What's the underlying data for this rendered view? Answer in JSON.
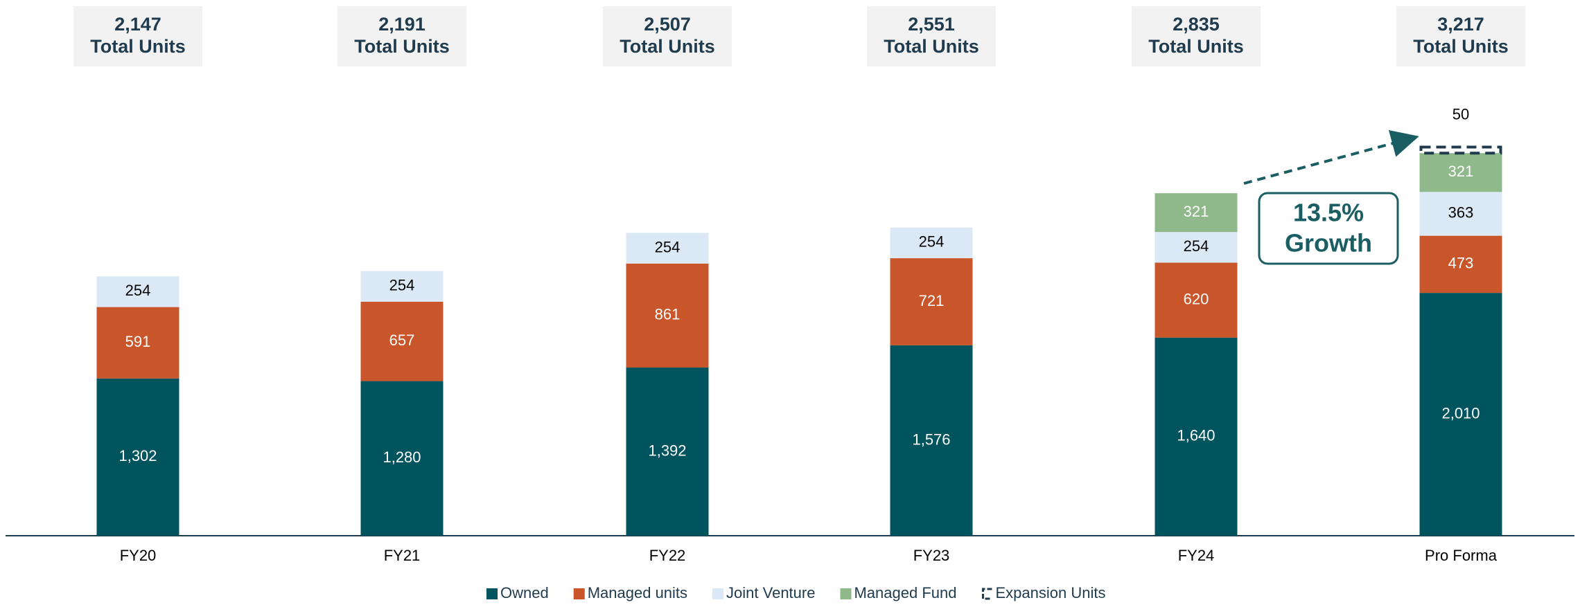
{
  "chart_data": {
    "type": "stacked_bar",
    "categories": [
      "FY20",
      "FY21",
      "FY22",
      "FY23",
      "FY24",
      "Pro Forma"
    ],
    "series": [
      {
        "name": "Owned",
        "color": "#00545e",
        "label_color": "#ffffff",
        "values": [
          1302,
          1280,
          1392,
          1576,
          1640,
          2010
        ],
        "value_labels": [
          "1,302",
          "1,280",
          "1,392",
          "1,576",
          "1,640",
          "2,010"
        ]
      },
      {
        "name": "Managed units",
        "color": "#c9562a",
        "label_color": "#ffffff",
        "values": [
          591,
          657,
          861,
          721,
          620,
          473
        ]
      },
      {
        "name": "Joint Venture",
        "color": "#dbe9f6",
        "label_color": "#000000",
        "values": [
          254,
          254,
          254,
          254,
          254,
          363
        ]
      },
      {
        "name": "Managed Fund",
        "color": "#8fb98a",
        "label_color": "#ffffff",
        "values": [
          null,
          null,
          null,
          null,
          321,
          321
        ]
      },
      {
        "name": "Expansion Units",
        "color": "#1f3b4d",
        "dashed": true,
        "label_color": "#000000",
        "values": [
          null,
          null,
          null,
          null,
          null,
          50
        ]
      }
    ],
    "totals": [
      {
        "value": 2147,
        "label": "2,147"
      },
      {
        "value": 2191,
        "label": "2,191"
      },
      {
        "value": 2507,
        "label": "2,507"
      },
      {
        "value": 2551,
        "label": "2,551"
      },
      {
        "value": 2835,
        "label": "2,835"
      },
      {
        "value": 3217,
        "label": "3,217"
      }
    ],
    "total_caption": "Total Units",
    "annotation": [
      "13.5%",
      "Growth"
    ],
    "ylim": [
      0,
      3300
    ]
  }
}
